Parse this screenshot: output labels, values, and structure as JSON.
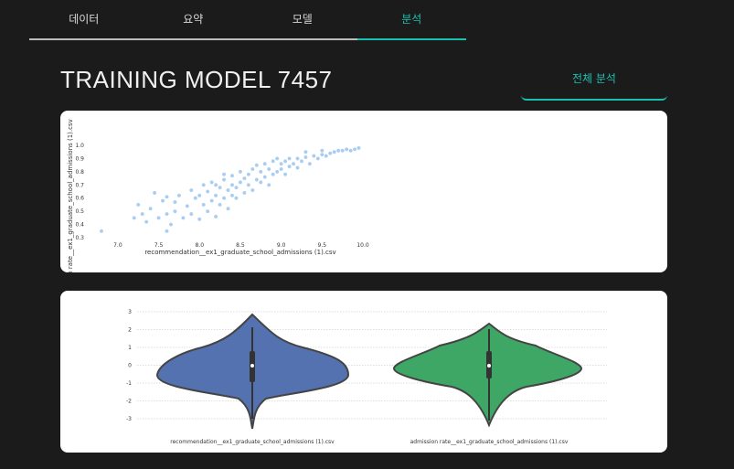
{
  "tabs": [
    {
      "label": "데이터",
      "active": false
    },
    {
      "label": "요약",
      "active": false
    },
    {
      "label": "모델",
      "active": false
    },
    {
      "label": "분석",
      "active": true
    }
  ],
  "page_title": "TRAINING MODEL 7457",
  "overall_analysis_label": "전체 분석",
  "colors": {
    "accent": "#19c2b0",
    "scatter": "#a9cdf2",
    "violin_blue": "#5471b0",
    "violin_green": "#3fa765"
  },
  "chart_data": [
    {
      "type": "scatter",
      "xlabel": "recommendation__ex1_graduate_school_admissions (1).csv",
      "ylabel": "admission rate__ex1_graduate_school_admissions (1).csv",
      "xlim": [
        6.8,
        10.0
      ],
      "ylim": [
        0.3,
        1.0
      ],
      "x_ticks": [
        "7.0",
        "7.5",
        "8.0",
        "8.5",
        "9.0",
        "9.5",
        "10.0"
      ],
      "y_ticks": [
        "0.3",
        "0.4",
        "0.5",
        "0.6",
        "0.7",
        "0.8",
        "0.9",
        "1.0"
      ],
      "points": [
        [
          6.8,
          0.35
        ],
        [
          7.2,
          0.45
        ],
        [
          7.25,
          0.55
        ],
        [
          7.3,
          0.48
        ],
        [
          7.35,
          0.42
        ],
        [
          7.4,
          0.52
        ],
        [
          7.45,
          0.64
        ],
        [
          7.5,
          0.45
        ],
        [
          7.55,
          0.58
        ],
        [
          7.6,
          0.48
        ],
        [
          7.6,
          0.61
        ],
        [
          7.65,
          0.4
        ],
        [
          7.7,
          0.5
        ],
        [
          7.7,
          0.57
        ],
        [
          7.75,
          0.62
        ],
        [
          7.8,
          0.45
        ],
        [
          7.85,
          0.54
        ],
        [
          7.9,
          0.66
        ],
        [
          7.9,
          0.48
        ],
        [
          7.95,
          0.6
        ],
        [
          8.0,
          0.44
        ],
        [
          8.0,
          0.62
        ],
        [
          8.05,
          0.55
        ],
        [
          8.05,
          0.7
        ],
        [
          8.1,
          0.5
        ],
        [
          8.1,
          0.65
        ],
        [
          8.15,
          0.58
        ],
        [
          8.15,
          0.72
        ],
        [
          8.2,
          0.46
        ],
        [
          8.2,
          0.62
        ],
        [
          8.25,
          0.68
        ],
        [
          8.25,
          0.55
        ],
        [
          8.3,
          0.74
        ],
        [
          8.3,
          0.6
        ],
        [
          8.35,
          0.52
        ],
        [
          8.35,
          0.66
        ],
        [
          8.4,
          0.7
        ],
        [
          8.4,
          0.77
        ],
        [
          8.45,
          0.6
        ],
        [
          8.45,
          0.68
        ],
        [
          8.5,
          0.72
        ],
        [
          8.5,
          0.8
        ],
        [
          8.55,
          0.64
        ],
        [
          8.55,
          0.75
        ],
        [
          8.6,
          0.7
        ],
        [
          8.6,
          0.78
        ],
        [
          8.65,
          0.82
        ],
        [
          8.65,
          0.66
        ],
        [
          8.7,
          0.74
        ],
        [
          8.7,
          0.85
        ],
        [
          8.75,
          0.72
        ],
        [
          8.75,
          0.8
        ],
        [
          8.8,
          0.76
        ],
        [
          8.8,
          0.86
        ],
        [
          8.85,
          0.7
        ],
        [
          8.85,
          0.82
        ],
        [
          8.9,
          0.78
        ],
        [
          8.9,
          0.88
        ],
        [
          8.95,
          0.8
        ],
        [
          8.95,
          0.9
        ],
        [
          9.0,
          0.82
        ],
        [
          9.0,
          0.86
        ],
        [
          9.05,
          0.88
        ],
        [
          9.05,
          0.78
        ],
        [
          9.1,
          0.84
        ],
        [
          9.1,
          0.9
        ],
        [
          9.15,
          0.86
        ],
        [
          9.2,
          0.9
        ],
        [
          9.2,
          0.83
        ],
        [
          9.25,
          0.88
        ],
        [
          9.3,
          0.91
        ],
        [
          9.35,
          0.86
        ],
        [
          9.4,
          0.92
        ],
        [
          9.45,
          0.9
        ],
        [
          9.5,
          0.93
        ],
        [
          9.55,
          0.92
        ],
        [
          9.6,
          0.94
        ],
        [
          9.65,
          0.95
        ],
        [
          9.7,
          0.96
        ],
        [
          9.75,
          0.96
        ],
        [
          9.8,
          0.97
        ],
        [
          9.85,
          0.96
        ],
        [
          9.9,
          0.97
        ],
        [
          9.95,
          0.98
        ],
        [
          9.3,
          0.95
        ],
        [
          9.5,
          0.96
        ],
        [
          8.2,
          0.7
        ],
        [
          8.3,
          0.78
        ],
        [
          8.4,
          0.62
        ],
        [
          7.6,
          0.35
        ]
      ]
    },
    {
      "type": "violin",
      "y_ticks": [
        "3",
        "2",
        "1",
        "0",
        "-1",
        "-2",
        "-3"
      ],
      "categories": [
        "recommendation__ex1_graduate_school_admissions (1).csv",
        "admission rate__ex1_graduate_school_admissions (1).csv"
      ]
    }
  ]
}
